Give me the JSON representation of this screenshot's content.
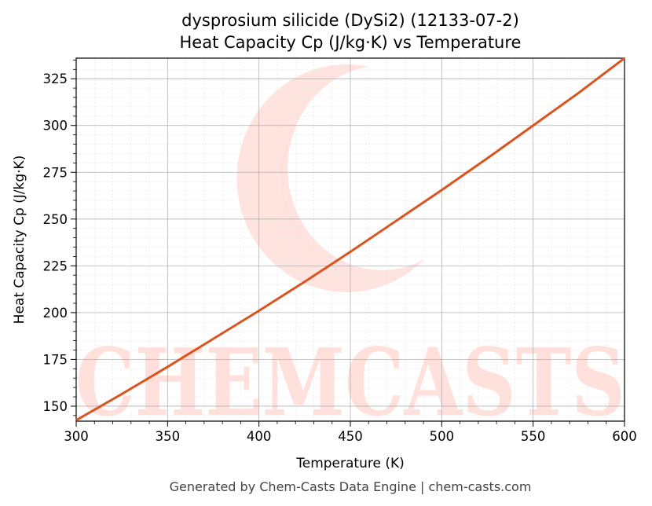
{
  "chart_data": {
    "type": "line",
    "title_line1": "dysprosium silicide (DySi2) (12133-07-2)",
    "title_line2": "Heat Capacity Cp (J/kg·K) vs Temperature",
    "xlabel": "Temperature (K)",
    "ylabel": "Heat Capacity Cp (J/kg·K)",
    "xlim": [
      300,
      600
    ],
    "ylim": [
      142,
      336
    ],
    "x_ticks": [
      300,
      350,
      400,
      450,
      500,
      550,
      600
    ],
    "y_ticks": [
      150,
      175,
      200,
      225,
      250,
      275,
      300,
      325
    ],
    "grid": true,
    "line_color": "#d9541e",
    "series": [
      {
        "x": [
          300,
          325,
          350,
          375,
          400,
          425,
          450,
          475,
          500,
          525,
          550,
          575,
          600
        ],
        "values": [
          142.5,
          156.5,
          171,
          186,
          201,
          216.5,
          232.5,
          249,
          265.5,
          282.5,
          300,
          317.5,
          336
        ]
      }
    ]
  },
  "watermark": {
    "text": "CHEMCASTS",
    "color": "#ffe0da"
  },
  "footer": "Generated by Chem-Casts Data Engine | chem-casts.com"
}
